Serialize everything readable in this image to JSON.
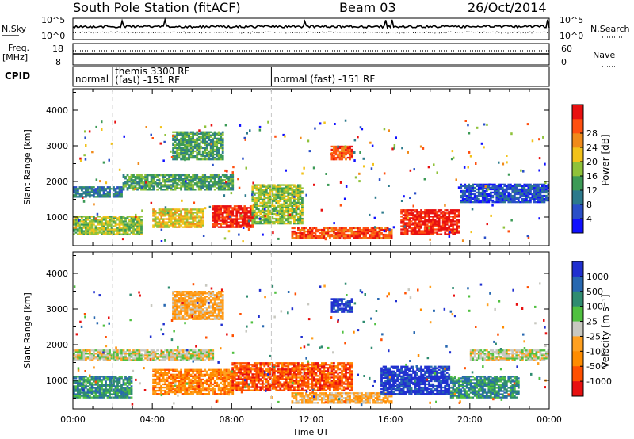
{
  "header": {
    "station": "South Pole Station (fitACF)",
    "beam": "Beam 03",
    "date": "26/Oct/2014"
  },
  "top_panels": {
    "nsky_label": "N.Sky",
    "nsky_ticks": [
      "10^5",
      "10^0"
    ],
    "nsearch_label": "N.Search",
    "freq_label_line1": "Freq.",
    "freq_label_line2": "[MHz]",
    "freq_ticks": [
      "18",
      "8"
    ],
    "nave_label": "Nave",
    "nave_ticks": [
      "60",
      "0"
    ],
    "cpid_label": "CPID",
    "cpid_segments": [
      {
        "start_hour": 0.0,
        "end_hour": 2.0,
        "line1": "normal",
        "line2": ""
      },
      {
        "start_hour": 2.0,
        "end_hour": 10.0,
        "line1": "themis 3300 RF",
        "line2": "(fast) -151 RF"
      },
      {
        "start_hour": 10.0,
        "end_hour": 24.0,
        "line1": "normal (fast) -151 RF",
        "line2": ""
      }
    ]
  },
  "chart_data": [
    {
      "type": "heatmap",
      "panel": "power",
      "ylabel": "Slant Range [km]",
      "ylim": [
        200,
        4600
      ],
      "yticks": [
        1000,
        2000,
        3000,
        4000
      ],
      "xlim": [
        0,
        24
      ],
      "xtick_labels": [
        "00:00",
        "04:00",
        "08:00",
        "12:00",
        "16:00",
        "20:00",
        "00:00"
      ],
      "colorbar": {
        "label": "Power [dB]",
        "ticks": [
          "4",
          "8",
          "12",
          "16",
          "20",
          "24",
          "28"
        ],
        "colors": [
          "#1010ff",
          "#2a4fc8",
          "#2c7a8c",
          "#3c9a56",
          "#8fc23a",
          "#f2c21a",
          "#f08a1a",
          "#ff5010",
          "#e81010"
        ]
      },
      "bands": [
        {
          "t0": 0.0,
          "t1": 2.5,
          "r0": 1550,
          "r1": 1850,
          "level": 2
        },
        {
          "t0": 2.5,
          "t1": 8.0,
          "r0": 1750,
          "r1": 2200,
          "level": 3
        },
        {
          "t0": 0.0,
          "t1": 3.5,
          "r0": 500,
          "r1": 1000,
          "level": 4
        },
        {
          "t0": 4.0,
          "t1": 6.5,
          "r0": 700,
          "r1": 1200,
          "level": 5
        },
        {
          "t0": 7.0,
          "t1": 9.0,
          "r0": 700,
          "r1": 1300,
          "level": 8
        },
        {
          "t0": 9.0,
          "t1": 11.5,
          "r0": 800,
          "r1": 1900,
          "level": 4
        },
        {
          "t0": 11.0,
          "t1": 16.0,
          "r0": 400,
          "r1": 700,
          "level": 7
        },
        {
          "t0": 16.5,
          "t1": 19.5,
          "r0": 500,
          "r1": 1200,
          "level": 8
        },
        {
          "t0": 19.5,
          "t1": 24.0,
          "r0": 1400,
          "r1": 1900,
          "level": 1
        },
        {
          "t0": 5.0,
          "t1": 7.5,
          "r0": 2600,
          "r1": 3400,
          "level": 3
        },
        {
          "t0": 13.0,
          "t1": 14.0,
          "r0": 2600,
          "r1": 3000,
          "level": 7
        }
      ]
    },
    {
      "type": "heatmap",
      "panel": "velocity",
      "ylabel": "Slant Range [km]",
      "xlabel": "Time UT",
      "ylim": [
        200,
        4600
      ],
      "yticks": [
        1000,
        2000,
        3000,
        4000
      ],
      "xlim": [
        0,
        24
      ],
      "xtick_labels": [
        "00:00",
        "04:00",
        "08:00",
        "12:00",
        "16:00",
        "20:00",
        "00:00"
      ],
      "colorbar": {
        "label": "Velocity [m s⁻¹]",
        "ticks": [
          "1000",
          "500",
          "100",
          "25",
          "-25",
          "-100",
          "-500",
          "-1000"
        ],
        "colors": [
          "#2030d0",
          "#2868b0",
          "#2f8c70",
          "#50c040",
          "#c8c8c0",
          "#ffa020",
          "#ff8c00",
          "#ff5000",
          "#e81010"
        ]
      },
      "bands": [
        {
          "t0": 0.0,
          "t1": 7.0,
          "r0": 1550,
          "r1": 1850,
          "level": 4
        },
        {
          "t0": 0.0,
          "t1": 3.0,
          "r0": 500,
          "r1": 1100,
          "level": 2
        },
        {
          "t0": 4.0,
          "t1": 8.0,
          "r0": 600,
          "r1": 1300,
          "level": 6
        },
        {
          "t0": 8.0,
          "t1": 14.0,
          "r0": 700,
          "r1": 1500,
          "level": 7
        },
        {
          "t0": 11.0,
          "t1": 16.0,
          "r0": 350,
          "r1": 650,
          "level": 5
        },
        {
          "t0": 15.5,
          "t1": 19.0,
          "r0": 600,
          "r1": 1400,
          "level": 0
        },
        {
          "t0": 19.0,
          "t1": 22.5,
          "r0": 500,
          "r1": 1100,
          "level": 2
        },
        {
          "t0": 20.0,
          "t1": 24.0,
          "r0": 1550,
          "r1": 1850,
          "level": 4
        },
        {
          "t0": 5.0,
          "t1": 7.5,
          "r0": 2700,
          "r1": 3500,
          "level": 5
        },
        {
          "t0": 13.0,
          "t1": 14.0,
          "r0": 2900,
          "r1": 3300,
          "level": 0
        }
      ]
    }
  ]
}
